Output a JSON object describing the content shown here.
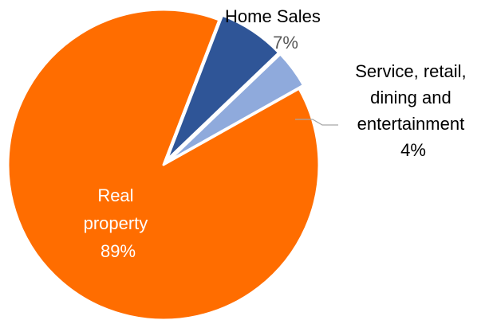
{
  "chart_data": {
    "type": "pie",
    "title": "",
    "slices": [
      {
        "label": "Real property",
        "label_lines": [
          "Real",
          "property"
        ],
        "value": 89,
        "value_label": "89%",
        "color": "#ff6d00"
      },
      {
        "label": "Home Sales",
        "label_lines": [
          "Home Sales"
        ],
        "value": 7,
        "value_label": "7%",
        "color": "#2f5597"
      },
      {
        "label": "Service, retail, dining and entertainment",
        "label_lines": [
          "Service, retail,",
          "dining and",
          "entertainment"
        ],
        "value": 4,
        "value_label": "4%",
        "color": "#8faadc"
      }
    ],
    "label_colors": {
      "inside": "#ffffff",
      "outside": "#000000",
      "outside_percent": "#595959",
      "leader_line": "#a6a6a6"
    },
    "legend": "none"
  }
}
